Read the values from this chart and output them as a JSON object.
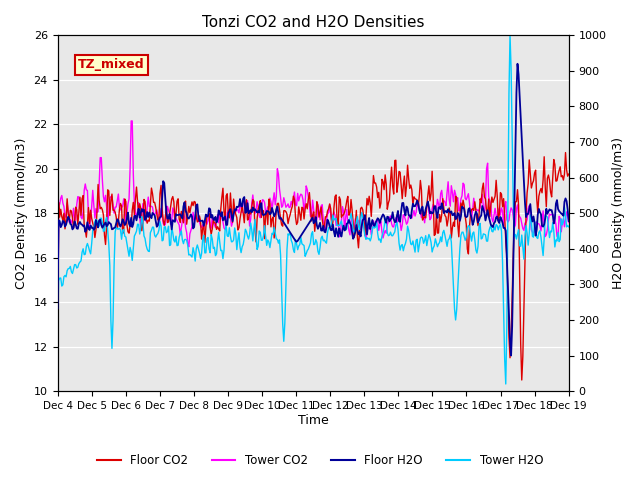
{
  "title": "Tonzi CO2 and H2O Densities",
  "xlabel": "Time",
  "ylabel_left": "CO2 Density (mmol/m3)",
  "ylabel_right": "H2O Density (mmol/m3)",
  "ylim_left": [
    10,
    26
  ],
  "ylim_right": [
    0,
    1000
  ],
  "xtick_labels": [
    "Dec 4",
    "Dec 5",
    "Dec 6",
    "Dec 7",
    "Dec 8",
    "Dec 9",
    "Dec 10",
    "Dec 11",
    "Dec 12",
    "Dec 13",
    "Dec 14",
    "Dec 15",
    "Dec 16",
    "Dec 17",
    "Dec 18",
    "Dec 19"
  ],
  "annotation_text": "TZ_mixed",
  "annotation_bg": "#ffffcc",
  "annotation_edge": "#cc0000",
  "annotation_fc": "#cc0000",
  "colors": {
    "floor_co2": "#dd0000",
    "tower_co2": "#ff00ff",
    "floor_h2o": "#000099",
    "tower_h2o": "#00ccff"
  },
  "legend_labels": [
    "Floor CO2",
    "Tower CO2",
    "Floor H2O",
    "Tower H2O"
  ],
  "background_color": "#e8e8e8",
  "n_points": 480,
  "seed": 7
}
